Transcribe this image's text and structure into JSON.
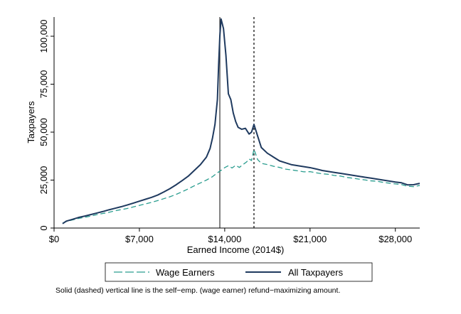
{
  "chart_data": {
    "type": "line",
    "xlabel": "Earned Income (2014$)",
    "ylabel": "Taxpayers",
    "xlim": [
      0,
      30000
    ],
    "ylim": [
      0,
      110000
    ],
    "x_ticks": [
      {
        "value": 0,
        "label": "$0"
      },
      {
        "value": 7000,
        "label": "$7,000"
      },
      {
        "value": 14000,
        "label": "$14,000"
      },
      {
        "value": 21000,
        "label": "$21,000"
      },
      {
        "value": 28000,
        "label": "$28,000"
      }
    ],
    "y_ticks": [
      {
        "value": 0,
        "label": "0"
      },
      {
        "value": 25000,
        "label": "25,000"
      },
      {
        "value": 50000,
        "label": "50,000"
      },
      {
        "value": 75000,
        "label": "75,000"
      },
      {
        "value": 100000,
        "label": "100,000"
      }
    ],
    "vlines": [
      {
        "x": 13600,
        "style": "solid",
        "color": "#333333"
      },
      {
        "x": 16400,
        "style": "dashed",
        "color": "#000000"
      }
    ],
    "series": [
      {
        "name": "Wage Earners",
        "style": "dashed",
        "color": "#2a9d8f",
        "points": [
          [
            700,
            2500
          ],
          [
            1000,
            3400
          ],
          [
            1500,
            4200
          ],
          [
            2000,
            5000
          ],
          [
            2500,
            5600
          ],
          [
            3000,
            6200
          ],
          [
            3500,
            7000
          ],
          [
            4000,
            7600
          ],
          [
            4500,
            8200
          ],
          [
            5000,
            9000
          ],
          [
            5500,
            9600
          ],
          [
            6000,
            10200
          ],
          [
            6500,
            11000
          ],
          [
            7000,
            11800
          ],
          [
            7500,
            12600
          ],
          [
            8000,
            13400
          ],
          [
            8500,
            14300
          ],
          [
            9000,
            15300
          ],
          [
            9500,
            16300
          ],
          [
            10000,
            17500
          ],
          [
            10500,
            18900
          ],
          [
            11000,
            20400
          ],
          [
            11500,
            22000
          ],
          [
            12000,
            23500
          ],
          [
            12500,
            25000
          ],
          [
            13000,
            26800
          ],
          [
            13400,
            28800
          ],
          [
            13800,
            30500
          ],
          [
            14000,
            31500
          ],
          [
            14300,
            32500
          ],
          [
            14600,
            31300
          ],
          [
            14900,
            32700
          ],
          [
            15200,
            31600
          ],
          [
            15500,
            33100
          ],
          [
            15800,
            34500
          ],
          [
            16000,
            36000
          ],
          [
            16200,
            35200
          ],
          [
            16400,
            41000
          ],
          [
            16700,
            35700
          ],
          [
            17000,
            33700
          ],
          [
            17500,
            33100
          ],
          [
            18000,
            32200
          ],
          [
            18500,
            31600
          ],
          [
            19000,
            30700
          ],
          [
            19500,
            30300
          ],
          [
            20000,
            29800
          ],
          [
            20500,
            29300
          ],
          [
            21000,
            29400
          ],
          [
            21500,
            28800
          ],
          [
            22000,
            28300
          ],
          [
            22500,
            28000
          ],
          [
            23000,
            27400
          ],
          [
            23500,
            27100
          ],
          [
            24000,
            26400
          ],
          [
            24500,
            26000
          ],
          [
            25000,
            25500
          ],
          [
            25500,
            25100
          ],
          [
            26000,
            24600
          ],
          [
            26500,
            24400
          ],
          [
            27000,
            23800
          ],
          [
            27500,
            23400
          ],
          [
            28000,
            23000
          ],
          [
            28500,
            22700
          ],
          [
            29000,
            21800
          ],
          [
            29500,
            21600
          ],
          [
            30000,
            22200
          ]
        ]
      },
      {
        "name": "All Taxpayers",
        "style": "solid",
        "color": "#1f3a5f",
        "points": [
          [
            700,
            2300
          ],
          [
            1000,
            3600
          ],
          [
            1500,
            4500
          ],
          [
            2000,
            5500
          ],
          [
            2500,
            6200
          ],
          [
            3000,
            7000
          ],
          [
            3500,
            7800
          ],
          [
            4000,
            8600
          ],
          [
            4500,
            9500
          ],
          [
            5000,
            10300
          ],
          [
            5500,
            11100
          ],
          [
            6000,
            12000
          ],
          [
            6500,
            13000
          ],
          [
            7000,
            14000
          ],
          [
            7500,
            15000
          ],
          [
            8000,
            16000
          ],
          [
            8500,
            17200
          ],
          [
            9000,
            18800
          ],
          [
            9500,
            20500
          ],
          [
            10000,
            22500
          ],
          [
            10500,
            24700
          ],
          [
            11000,
            27000
          ],
          [
            11500,
            30000
          ],
          [
            12000,
            33000
          ],
          [
            12500,
            37000
          ],
          [
            12800,
            41500
          ],
          [
            13000,
            47000
          ],
          [
            13200,
            54000
          ],
          [
            13400,
            67000
          ],
          [
            13500,
            85000
          ],
          [
            13600,
            100000
          ],
          [
            13700,
            109000
          ],
          [
            13900,
            104000
          ],
          [
            14100,
            90000
          ],
          [
            14300,
            70000
          ],
          [
            14500,
            67000
          ],
          [
            14700,
            60000
          ],
          [
            14900,
            55500
          ],
          [
            15100,
            52500
          ],
          [
            15400,
            51500
          ],
          [
            15700,
            52000
          ],
          [
            16000,
            49000
          ],
          [
            16200,
            50000
          ],
          [
            16400,
            54000
          ],
          [
            16700,
            48000
          ],
          [
            17000,
            42000
          ],
          [
            17500,
            39000
          ],
          [
            18000,
            37000
          ],
          [
            18500,
            35000
          ],
          [
            19000,
            34000
          ],
          [
            19500,
            33000
          ],
          [
            20000,
            32500
          ],
          [
            20500,
            32000
          ],
          [
            21000,
            31500
          ],
          [
            21500,
            30800
          ],
          [
            22000,
            30000
          ],
          [
            22500,
            29500
          ],
          [
            23000,
            29000
          ],
          [
            23500,
            28500
          ],
          [
            24000,
            28000
          ],
          [
            24500,
            27500
          ],
          [
            25000,
            27000
          ],
          [
            25500,
            26500
          ],
          [
            26000,
            26000
          ],
          [
            26500,
            25500
          ],
          [
            27000,
            25000
          ],
          [
            27500,
            24500
          ],
          [
            28000,
            24000
          ],
          [
            28500,
            23600
          ],
          [
            29000,
            22500
          ],
          [
            29500,
            22600
          ],
          [
            30000,
            23300
          ]
        ]
      }
    ],
    "legend_position": "bottom",
    "note": "Solid (dashed) vertical line is the self−emp. (wage earner) refund−maximizing amount."
  }
}
